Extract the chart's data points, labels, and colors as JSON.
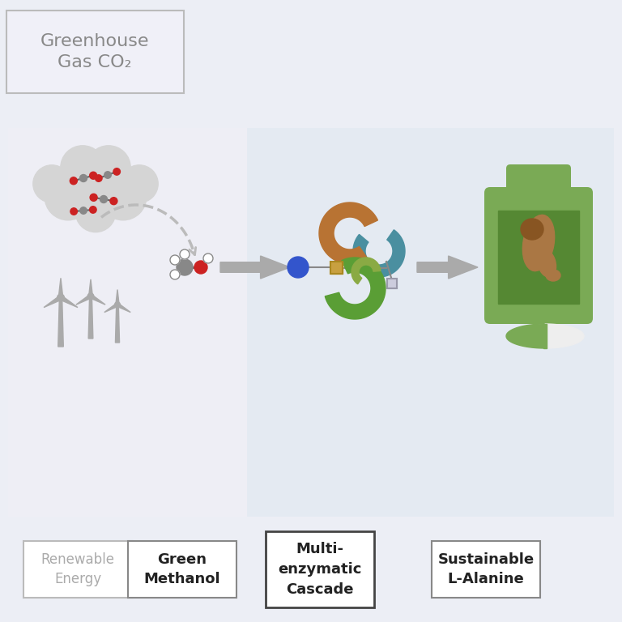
{
  "bg_outer": "#eceef5",
  "bg_left": "#eeeef5",
  "bg_right": "#e4eaf2",
  "title_box_text": "Greenhouse\nGas CO₂",
  "title_box_color": "#888888",
  "label1_text": "Renewable\nEnergy",
  "label1_color": "#aaaaaa",
  "label1_border": "#bbbbbb",
  "label2_text": "Green\nMethanol",
  "label2_color": "#222222",
  "label2_border": "#888888",
  "label3_text": "Multi-\nenzymatic\nCascade",
  "label3_color": "#222222",
  "label3_border": "#444444",
  "label4_text": "Sustainable\nL-Alanine",
  "label4_color": "#222222",
  "label4_border": "#888888",
  "cloud_color": "#d5d5d5",
  "molecule_gray": "#888888",
  "molecule_red": "#cc2222",
  "wind_color": "#aaaaaa",
  "arrow_color": "#aaaaaa",
  "dashed_arrow_color": "#bbbbbb",
  "methanol_gray": "#888888",
  "methanol_red": "#cc2222",
  "enzyme_brown": "#b87333",
  "enzyme_teal": "#4a8fa0",
  "enzyme_green": "#5a9e35",
  "enzyme_olive": "#8aaa44",
  "nadh_blue": "#3355cc",
  "coenzyme_tan": "#c8a040",
  "bottle_green": "#7aaa55",
  "bottle_dark_green": "#558833",
  "bottle_label_bg": "#996633",
  "arm_color": "#aa7744",
  "arm_dark": "#885522",
  "pill_green": "#7aaa55",
  "pill_white": "#ffffff"
}
